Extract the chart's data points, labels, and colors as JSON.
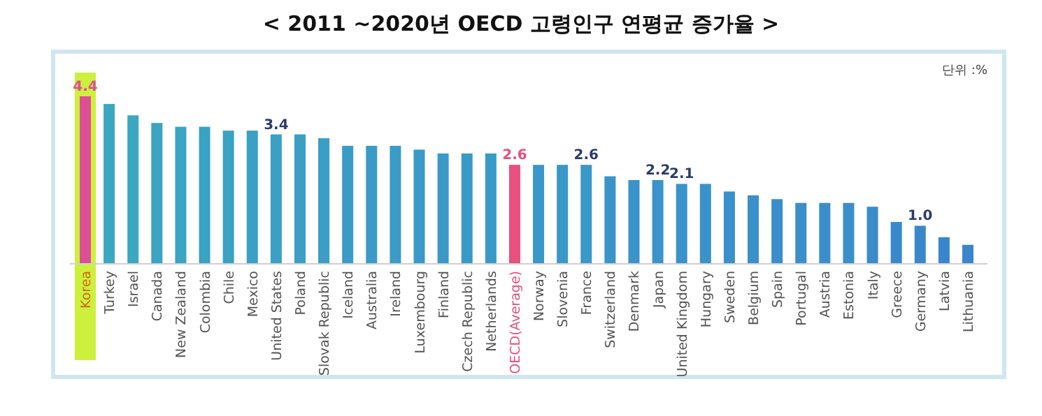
{
  "chart_data": {
    "type": "bar",
    "title": "< 2011 ~2020년 OECD 고령인구 연평균 증가율 >",
    "annotations": [
      "단위 :%"
    ],
    "categories": [
      "Korea",
      "Turkey",
      "Israel",
      "Canada",
      "New Zealand",
      "Colombia",
      "Chile",
      "Mexico",
      "United States",
      "Poland",
      "Slovak Republic",
      "Iceland",
      "Australia",
      "Ireland",
      "Luxembourg",
      "Finland",
      "Czech Republic",
      "Netherlands",
      "OECD(Average)",
      "Norway",
      "Slovenia",
      "France",
      "Switzerland",
      "Denmark",
      "Japan",
      "United Kingdom",
      "Hungary",
      "Sweden",
      "Belgium",
      "Spain",
      "Portugal",
      "Austria",
      "Estonia",
      "Italy",
      "Greece",
      "Germany",
      "Latvia",
      "Lithuania"
    ],
    "values": [
      4.4,
      4.2,
      3.9,
      3.7,
      3.6,
      3.6,
      3.5,
      3.5,
      3.4,
      3.4,
      3.3,
      3.1,
      3.1,
      3.1,
      3.0,
      2.9,
      2.9,
      2.9,
      2.6,
      2.6,
      2.6,
      2.6,
      2.3,
      2.2,
      2.2,
      2.1,
      2.1,
      1.9,
      1.8,
      1.7,
      1.6,
      1.6,
      1.6,
      1.5,
      1.1,
      1.0,
      0.7,
      0.5
    ],
    "value_labels": [
      "4.4",
      null,
      null,
      null,
      null,
      null,
      null,
      null,
      "3.4",
      null,
      null,
      null,
      null,
      null,
      null,
      null,
      null,
      null,
      "2.6",
      null,
      null,
      "2.6",
      null,
      null,
      "2.2",
      "2.1",
      null,
      null,
      null,
      null,
      null,
      null,
      null,
      null,
      null,
      "1.0",
      null,
      null
    ],
    "colors": [
      "#dc4f96",
      "#3aa8c0",
      "#3aa8c0",
      "#3aa4c2",
      "#3aa4c2",
      "#3aa2c3",
      "#3aa2c3",
      "#3aa0c4",
      "#3aa0c4",
      "#3a9ec5",
      "#3a9ec5",
      "#3a9cc6",
      "#3a9cc6",
      "#3a9cc6",
      "#3a9ac7",
      "#3a9ac7",
      "#3a9ac7",
      "#3a9ac7",
      "#e8507f",
      "#3a98c8",
      "#3a98c8",
      "#3a98c8",
      "#3a94c9",
      "#3a94c9",
      "#3a94c9",
      "#3a92ca",
      "#3a92ca",
      "#3a90ca",
      "#3a90ca",
      "#3a8ecb",
      "#3a8ecb",
      "#3a8ecb",
      "#3a8ecb",
      "#3a8ccb",
      "#3a88cc",
      "#3a88cc",
      "#3a86cc",
      "#3a86cc"
    ],
    "bands": [
      {
        "axis": "x",
        "from": "Korea",
        "to": "Korea",
        "color": "#ccf03c"
      }
    ],
    "relative": false
  }
}
